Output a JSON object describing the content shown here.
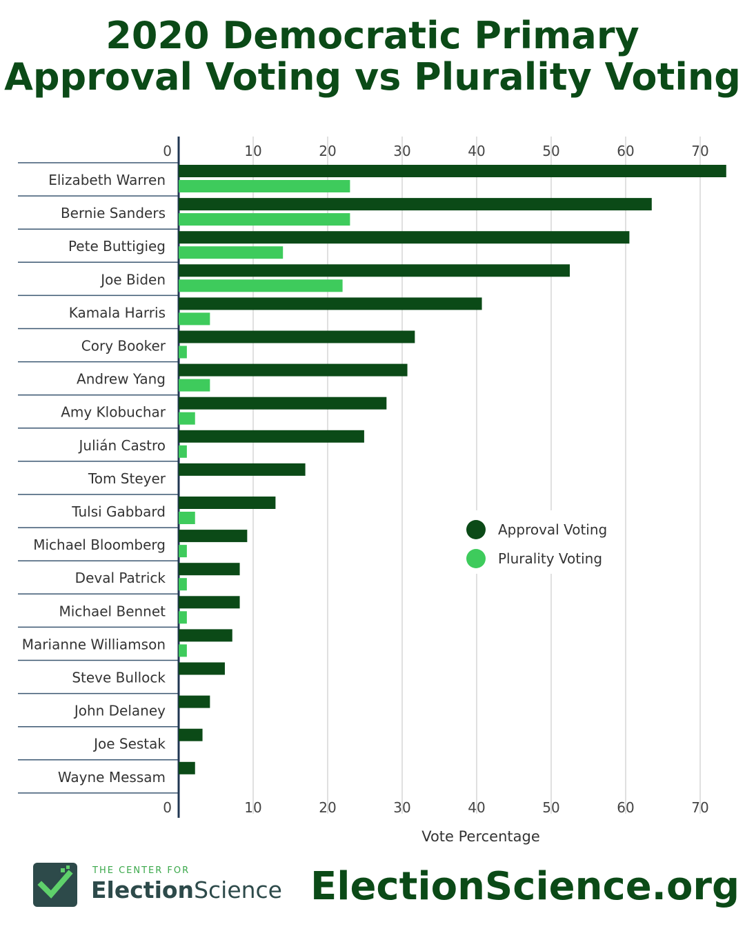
{
  "title_line1": "2020 Democratic Primary",
  "title_line2": "Approval Voting vs Plurality Voting",
  "footer": {
    "logo_small": "THE CENTER FOR",
    "logo_big_bold": "Election",
    "logo_big_light": "Science",
    "site": "ElectionScience.org"
  },
  "colors": {
    "approval": "#0b4a17",
    "plurality": "#3ecb5c",
    "title": "#0b4a17"
  },
  "chart_data": {
    "type": "bar",
    "orientation": "horizontal",
    "title": "",
    "xlabel": "Vote Percentage",
    "ylabel": "",
    "xlim": [
      0,
      75
    ],
    "xticks": [
      0,
      10,
      20,
      30,
      40,
      50,
      60,
      70
    ],
    "grid": true,
    "legend_position": "right-middle",
    "categories": [
      "Elizabeth Warren",
      "Bernie Sanders",
      "Pete Buttigieg",
      "Joe Biden",
      "Kamala Harris",
      "Cory Booker",
      "Andrew Yang",
      "Amy Klobuchar",
      "Julián Castro",
      "Tom Steyer",
      "Tulsi Gabbard",
      "Michael Bloomberg",
      "Deval Patrick",
      "Michael Bennet",
      "Marianne Williamson",
      "Steve Bullock",
      "John Delaney",
      "Joe Sestak",
      "Wayne Messam"
    ],
    "series": [
      {
        "name": "Approval Voting",
        "color": "#0b4a17",
        "values": [
          73.5,
          63.5,
          60.5,
          52.5,
          40.7,
          31.7,
          30.7,
          27.9,
          24.9,
          17.0,
          13.0,
          9.2,
          8.2,
          8.2,
          7.2,
          6.2,
          4.2,
          3.2,
          2.2
        ]
      },
      {
        "name": "Plurality Voting",
        "color": "#3ecb5c",
        "values": [
          23.0,
          23.0,
          14.0,
          22.0,
          4.2,
          1.1,
          4.2,
          2.2,
          1.1,
          0,
          2.2,
          1.1,
          1.1,
          1.1,
          1.1,
          0,
          0,
          0,
          0
        ]
      }
    ]
  }
}
